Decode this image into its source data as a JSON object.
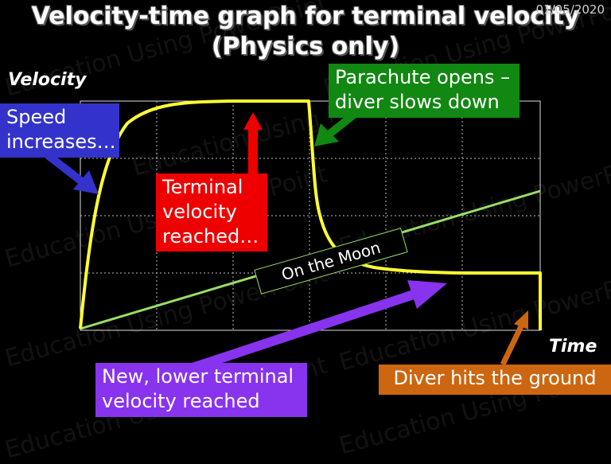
{
  "header": {
    "title_line1": "Velocity-time graph for terminal velocity",
    "title_line2": "(Physics only)",
    "date": "01/05/2020"
  },
  "axes": {
    "y_label": "Velocity",
    "x_label": "Time"
  },
  "labels": {
    "speed_increases": [
      "Speed",
      "increases…"
    ],
    "terminal_velocity": [
      "Terminal",
      "velocity",
      "reached…"
    ],
    "parachute_opens": [
      "Parachute opens –",
      "diver slows down"
    ],
    "on_the_moon": "On the Moon",
    "lower_terminal": [
      "New, lower terminal",
      "velocity reached"
    ],
    "hits_ground": "Diver hits the ground"
  },
  "watermark": "Education Using PowerPoint",
  "colors": {
    "background": "#000000",
    "curve": "#ffff33",
    "moon_line": "#99dd66",
    "speed_box": "#3333cc",
    "terminal_box": "#ee0000",
    "parachute_box": "#118811",
    "lower_box": "#8833ee",
    "ground_box": "#cc6611"
  }
}
